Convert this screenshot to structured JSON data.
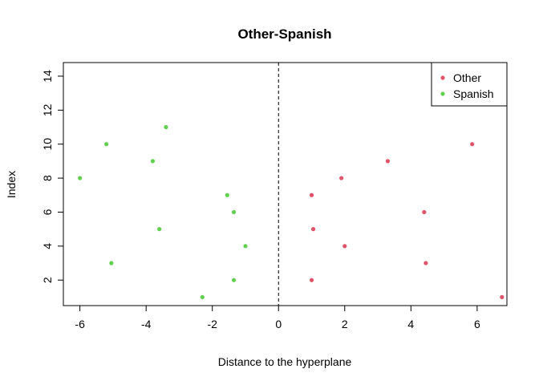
{
  "chart_data": {
    "type": "scatter",
    "title": "Other-Spanish",
    "xlabel": "Distance to the hyperplane",
    "ylabel": "Index",
    "xlim": [
      -6.5,
      6.9
    ],
    "ylim": [
      0.5,
      14.8
    ],
    "x_ticks": [
      -6,
      -4,
      -2,
      0,
      2,
      4,
      6
    ],
    "y_ticks": [
      2,
      4,
      6,
      8,
      10,
      12,
      14
    ],
    "x_tick_labels": [
      "-6",
      "-4",
      "-2",
      "0",
      "2",
      "4",
      "6"
    ],
    "y_tick_labels": [
      "2",
      "4",
      "6",
      "8",
      "10",
      "12",
      "14"
    ],
    "vline": {
      "x": 0,
      "style": "dashed"
    },
    "legend": {
      "position": "top-right"
    },
    "series": [
      {
        "name": "Other",
        "color": "#DF536B",
        "points": [
          {
            "x": 6.75,
            "y": 1
          },
          {
            "x": 1.0,
            "y": 2
          },
          {
            "x": 4.45,
            "y": 3
          },
          {
            "x": 2.0,
            "y": 4
          },
          {
            "x": 1.05,
            "y": 5
          },
          {
            "x": 4.4,
            "y": 6
          },
          {
            "x": 1.0,
            "y": 7
          },
          {
            "x": 1.9,
            "y": 8
          },
          {
            "x": 3.3,
            "y": 9
          },
          {
            "x": 5.85,
            "y": 10
          }
        ]
      },
      {
        "name": "Spanish",
        "color": "#61D04F",
        "points": [
          {
            "x": -2.3,
            "y": 1
          },
          {
            "x": -1.35,
            "y": 2
          },
          {
            "x": -5.05,
            "y": 3
          },
          {
            "x": -1.0,
            "y": 4
          },
          {
            "x": -3.6,
            "y": 5
          },
          {
            "x": -1.35,
            "y": 6
          },
          {
            "x": -1.55,
            "y": 7
          },
          {
            "x": -6.0,
            "y": 8
          },
          {
            "x": -3.8,
            "y": 9
          },
          {
            "x": -5.2,
            "y": 10
          },
          {
            "x": -3.4,
            "y": 11
          }
        ]
      }
    ]
  }
}
